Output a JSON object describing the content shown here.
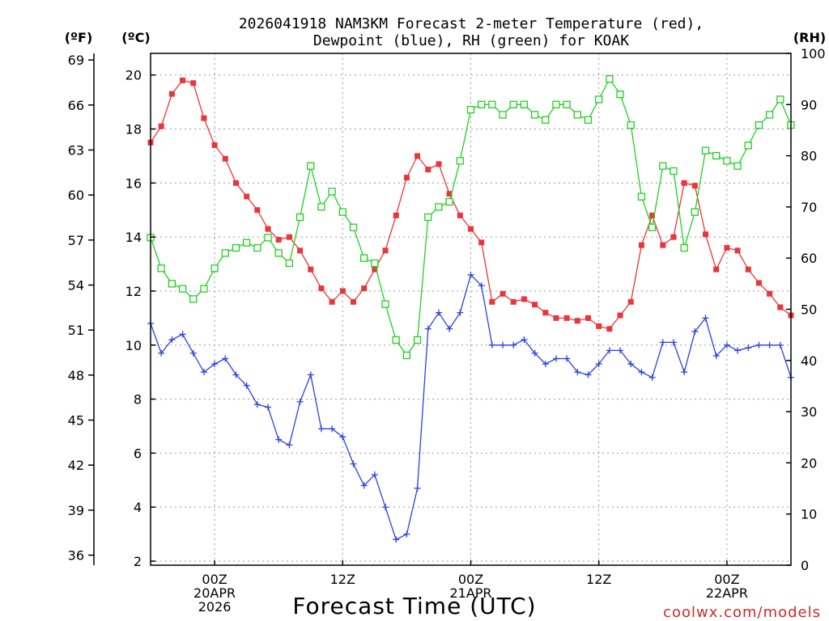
{
  "chart_data": {
    "type": "line",
    "title_lines": [
      "2026041918 NAM3KM Forecast 2-meter Temperature (red),",
      "Dewpoint (blue), RH (green) for KOAK"
    ],
    "xlabel": "Forecast Time (UTC)",
    "credit": "coolwx.com/models",
    "unit_left_f": "(ºF)",
    "unit_left_c": "(ºC)",
    "unit_right": "(RH)",
    "ylim_c": [
      1.85,
      20.8
    ],
    "ylim_rh": [
      0,
      100
    ],
    "x_hour_range": [
      18,
      78
    ],
    "yticks_c": [
      2,
      4,
      6,
      8,
      10,
      12,
      14,
      16,
      18,
      20
    ],
    "yticks_f": [
      36,
      39,
      42,
      45,
      48,
      51,
      54,
      57,
      60,
      63,
      66,
      69
    ],
    "yticks_rh": [
      0,
      10,
      20,
      30,
      40,
      50,
      60,
      70,
      80,
      90,
      100
    ],
    "xticks": [
      {
        "hour": 24,
        "lines": [
          "00Z",
          "20APR",
          "2026"
        ]
      },
      {
        "hour": 36,
        "lines": [
          "12Z"
        ]
      },
      {
        "hour": 48,
        "lines": [
          "00Z",
          "21APR"
        ]
      },
      {
        "hour": 60,
        "lines": [
          "12Z"
        ]
      },
      {
        "hour": 72,
        "lines": [
          "00Z",
          "22APR"
        ]
      }
    ],
    "series": [
      {
        "color": "#e8363b",
        "marker": "filled-square",
        "axis": "c",
        "x": [
          18,
          19,
          20,
          21,
          22,
          23,
          24,
          25,
          26,
          27,
          28,
          29,
          30,
          31,
          32,
          33,
          34,
          35,
          36,
          37,
          38,
          39,
          40,
          41,
          42,
          43,
          44,
          45,
          46,
          47,
          48,
          49,
          50,
          51,
          52,
          53,
          54,
          55,
          56,
          57,
          58,
          59,
          60,
          61,
          62,
          63,
          64,
          65,
          66,
          67,
          68,
          69,
          70,
          71,
          72,
          73,
          74,
          75,
          76,
          77,
          78
        ],
        "values": [
          17.5,
          18.1,
          19.3,
          19.8,
          19.7,
          18.4,
          17.4,
          16.9,
          16.0,
          15.5,
          15.0,
          14.3,
          13.9,
          14.0,
          13.5,
          12.8,
          12.1,
          11.6,
          12.0,
          11.6,
          12.1,
          12.8,
          13.5,
          14.8,
          16.2,
          17.0,
          16.5,
          16.7,
          15.6,
          14.8,
          14.3,
          13.8,
          11.6,
          11.9,
          11.6,
          11.7,
          11.5,
          11.2,
          11.0,
          11.0,
          10.9,
          11.0,
          10.7,
          10.6,
          11.1,
          11.6,
          13.7,
          14.8,
          13.7,
          14.0,
          16.0,
          15.9,
          14.1,
          12.8,
          13.6,
          13.5,
          12.8,
          12.3,
          11.9,
          11.4,
          11.1
        ]
      },
      {
        "color": "#2b43e0",
        "marker": "plus",
        "axis": "c",
        "x": [
          18,
          19,
          20,
          21,
          22,
          23,
          24,
          25,
          26,
          27,
          28,
          29,
          30,
          31,
          32,
          33,
          34,
          35,
          36,
          37,
          38,
          39,
          40,
          41,
          42,
          43,
          44,
          45,
          46,
          47,
          48,
          49,
          50,
          51,
          52,
          53,
          54,
          55,
          56,
          57,
          58,
          59,
          60,
          61,
          62,
          63,
          64,
          65,
          66,
          67,
          68,
          69,
          70,
          71,
          72,
          73,
          74,
          75,
          76,
          77,
          78
        ],
        "values": [
          10.8,
          9.7,
          10.2,
          10.4,
          9.7,
          9.0,
          9.3,
          9.5,
          8.9,
          8.5,
          7.8,
          7.7,
          6.5,
          6.3,
          7.9,
          8.9,
          6.9,
          6.9,
          6.6,
          5.6,
          4.8,
          5.2,
          4.0,
          2.8,
          3.0,
          4.7,
          10.6,
          11.2,
          10.6,
          11.2,
          12.6,
          12.2,
          10.0,
          10.0,
          10.0,
          10.2,
          9.7,
          9.3,
          9.5,
          9.5,
          9.0,
          8.9,
          9.3,
          9.8,
          9.8,
          9.3,
          9.0,
          8.8,
          10.1,
          10.1,
          9.0,
          10.5,
          11.0,
          9.6,
          10.0,
          9.8,
          9.9,
          10.0,
          10.0,
          10.0,
          8.8
        ]
      },
      {
        "color": "#22d022",
        "marker": "open-square",
        "axis": "rh",
        "x": [
          18,
          19,
          20,
          21,
          22,
          23,
          24,
          25,
          26,
          27,
          28,
          29,
          30,
          31,
          32,
          33,
          34,
          35,
          36,
          37,
          38,
          39,
          40,
          41,
          42,
          43,
          44,
          45,
          46,
          47,
          48,
          49,
          50,
          51,
          52,
          53,
          54,
          55,
          56,
          57,
          58,
          59,
          60,
          61,
          62,
          63,
          64,
          65,
          66,
          67,
          68,
          69,
          70,
          71,
          72,
          73,
          74,
          75,
          76,
          77,
          78
        ],
        "values": [
          64,
          58,
          55,
          54,
          52,
          54,
          58,
          61,
          62,
          63,
          62,
          64,
          61,
          59,
          68,
          78,
          70,
          73,
          69,
          66,
          60,
          59,
          51,
          44,
          41,
          44,
          68,
          70,
          71,
          79,
          89,
          90,
          90,
          88,
          90,
          90,
          88,
          87,
          90,
          90,
          88,
          87,
          91,
          95,
          92,
          86,
          72,
          66,
          78,
          77,
          62,
          69,
          81,
          80,
          79,
          78,
          82,
          86,
          88,
          91,
          86
        ]
      }
    ]
  }
}
